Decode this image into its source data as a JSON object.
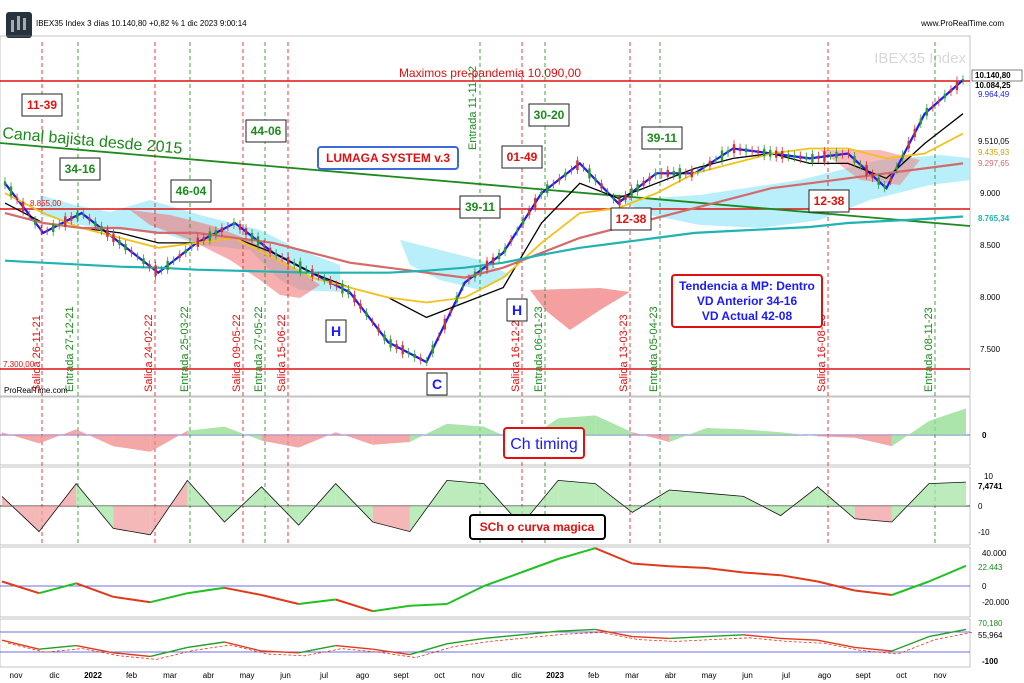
{
  "header": {
    "title": "IBEX35 Index 3 días 10.140,80 +0,82 % 1 dic 2023 9:00:14",
    "site": "www.ProRealTime.com",
    "watermark": "IBEX35 Index",
    "credit": "ProRealTime.com"
  },
  "colors": {
    "price_line": "#1a1aff",
    "bullish_candle": "#2e9a2e",
    "bearish_candle": "#cc3333",
    "ichimoku_green": "#9be8f8",
    "ichimoku_red": "#f07878",
    "channel": "#1c8a1c",
    "cyan_ma": "#1fb3b3",
    "red_ma": "#d46a6a",
    "yellow_ma": "#f2c21b",
    "black_line": "#000000",
    "resistance": "#e01010"
  },
  "chart_data": [
    {
      "type": "line",
      "panel": "price",
      "y_ticks": [
        "10.140,80",
        "10.084,25",
        "9.964,49",
        "9.510,05",
        "9.435,93",
        "9.297,65",
        "9.000",
        "8.765,34",
        "8.500",
        "8.000",
        "7.500"
      ],
      "x_ticks": [
        "nov",
        "dic",
        "2022",
        "feb",
        "mar",
        "abr",
        "may",
        "jun",
        "jul",
        "ago",
        "sept",
        "oct",
        "nov",
        "dic",
        "2023",
        "feb",
        "mar",
        "abr",
        "may",
        "jun",
        "jul",
        "ago",
        "sept",
        "oct",
        "nov"
      ],
      "ylim": [
        7200,
        10200
      ],
      "x": [
        "2021-11",
        "2021-12",
        "2022-01",
        "2022-02",
        "2022-03",
        "2022-04",
        "2022-05",
        "2022-06",
        "2022-07",
        "2022-08",
        "2022-09",
        "2022-10",
        "2022-11",
        "2022-12",
        "2023-01",
        "2023-02",
        "2023-03",
        "2023-04",
        "2023-05",
        "2023-06",
        "2023-07",
        "2023-08",
        "2023-09",
        "2023-10",
        "2023-11",
        "2023-12"
      ],
      "series": [
        {
          "values": [
            9100,
            8600,
            8800,
            8500,
            8200,
            8500,
            8700,
            8400,
            8200,
            8000,
            7500,
            7300,
            8100,
            8400,
            9000,
            9300,
            8900,
            9200,
            9200,
            9450,
            9400,
            9350,
            9400,
            9050,
            9800,
            10140
          ]
        },
        {
          "values": [
            8900,
            8700,
            8650,
            8600,
            8500,
            8500,
            8550,
            8400,
            8200,
            8050,
            7950,
            7750,
            7900,
            8050,
            8700,
            9100,
            8950,
            9100,
            9250,
            9350,
            9400,
            9300,
            9300,
            9150,
            9500,
            9800
          ]
        },
        {
          "values": [
            9000,
            8800,
            8650,
            8550,
            8450,
            8500,
            8550,
            8350,
            8150,
            8050,
            7950,
            7900,
            7950,
            8150,
            8500,
            8800,
            8850,
            9000,
            9200,
            9300,
            9400,
            9450,
            9450,
            9350,
            9400,
            9600
          ]
        },
        {
          "values": [
            8800,
            8700,
            8650,
            8650,
            8600,
            8600,
            8550,
            8500,
            8400,
            8300,
            8250,
            8200,
            8150,
            8250,
            8400,
            8550,
            8650,
            8750,
            8850,
            8950,
            9050,
            9100,
            9150,
            9200,
            9250,
            9300
          ]
        },
        {
          "values": [
            8320,
            8300,
            8280,
            8260,
            8250,
            8230,
            8220,
            8210,
            8200,
            8200,
            8200,
            8220,
            8250,
            8300,
            8380,
            8450,
            8500,
            8550,
            8600,
            8620,
            8640,
            8660,
            8700,
            8720,
            8740,
            8765
          ]
        }
      ],
      "annotations": [
        "11-39",
        "34-16",
        "46-04",
        "44-06",
        "LUMAGA SYSTEM v.3",
        "01-49",
        "30-20",
        "39-11",
        "39-11",
        "12-38",
        "12-38",
        "H",
        "H",
        "C",
        "Canal bajista desde 2015",
        "Maximos pre-pandemia 10.090,00",
        "8.855,00",
        "7.300,00",
        "Tendencia a MP: Dentro",
        "VD Anterior 34-16",
        "VD Actual  42-08"
      ],
      "vertical_labels": [
        "Salida 26-11-21",
        "Entrada 27-12-21",
        "Salida 24-02-22",
        "Entrada 25-03-22",
        "Salida 09-05-22",
        "Entrada 27-05-22",
        "Salida 15-06-22",
        "Entrada 11-11-22",
        "Salida 16-12-22",
        "Entrada 06-01-23",
        "Salida 13-03-23",
        "Entrada 05-04-23",
        "Salida 16-08-23",
        "Entrada 08-11-23"
      ]
    },
    {
      "type": "area",
      "panel": "Ch timing",
      "title": "Ch timing",
      "y_ticks": [
        "0"
      ],
      "values": [
        10,
        -30,
        20,
        -40,
        -60,
        15,
        30,
        -20,
        -45,
        10,
        -35,
        -25,
        40,
        30,
        -30,
        60,
        70,
        10,
        -25,
        25,
        20,
        10,
        -5,
        -10,
        -40,
        50,
        95
      ]
    },
    {
      "type": "area",
      "panel": "SCh o curva magica",
      "title": "SCh o curva magica",
      "y_ticks": [
        "10",
        "7,4741",
        "0",
        "-10"
      ],
      "values": [
        3,
        -8,
        7,
        -7,
        -9,
        8,
        -5,
        6,
        -6,
        7,
        -5,
        -8,
        8,
        7,
        -6,
        8,
        7,
        -2,
        5,
        4,
        3,
        -3,
        6,
        -4,
        -5,
        7,
        7.47
      ]
    },
    {
      "type": "line",
      "panel": "oscillator_3",
      "y_ticks": [
        "40.000",
        "22.443",
        "0",
        "-20.000"
      ],
      "values": [
        5000,
        -8000,
        3000,
        -12000,
        -18000,
        -8000,
        -2000,
        -10000,
        -20000,
        -15000,
        -28000,
        -22000,
        -20000,
        0,
        15000,
        30000,
        42000,
        25000,
        22000,
        20000,
        15000,
        12000,
        5000,
        -5000,
        -10000,
        5000,
        22443
      ]
    },
    {
      "type": "line",
      "panel": "oscillator_4",
      "y_ticks": [
        "70,180",
        "55,964",
        "-100"
      ],
      "values": [
        10,
        -40,
        -20,
        -60,
        -80,
        -30,
        0,
        -50,
        -60,
        -20,
        -40,
        -70,
        -10,
        20,
        40,
        60,
        70,
        30,
        20,
        30,
        40,
        20,
        10,
        -30,
        -50,
        30,
        70
      ]
    }
  ]
}
